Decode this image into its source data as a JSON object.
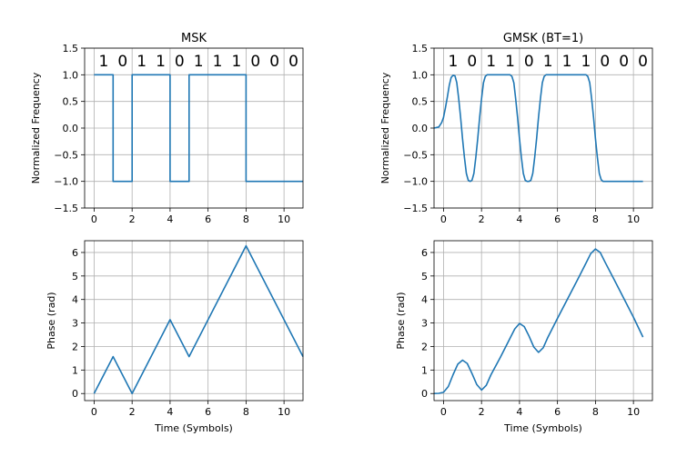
{
  "colors": {
    "series": "#1f77b4",
    "grid": "#b0b0b0"
  },
  "chart_data": [
    {
      "type": "line",
      "title": "MSK",
      "xlabel": "",
      "ylabel": "Normalized Frequency",
      "xlim": [
        -0.5,
        11
      ],
      "ylim": [
        -1.5,
        1.5
      ],
      "xticks": [
        0,
        2,
        4,
        6,
        8,
        10
      ],
      "xtick_labels": [
        "0",
        "2",
        "4",
        "6",
        "8",
        "10"
      ],
      "yticks": [
        -1.5,
        -1.0,
        -0.5,
        0.0,
        0.5,
        1.0,
        1.5
      ],
      "ytick_labels": [
        "−1.5",
        "−1.0",
        "−0.5",
        "0.0",
        "0.5",
        "1.0",
        "1.5"
      ],
      "grid": true,
      "bits": [
        "1",
        "0",
        "1",
        "1",
        "0",
        "1",
        "1",
        "1",
        "0",
        "0",
        "0"
      ],
      "series": [
        {
          "x": [
            0,
            1,
            1,
            2,
            2,
            4,
            4,
            5,
            5,
            8,
            8,
            11
          ],
          "y": [
            1,
            1,
            -1,
            -1,
            1,
            1,
            -1,
            -1,
            1,
            1,
            -1,
            -1
          ]
        }
      ]
    },
    {
      "type": "line",
      "title": "GMSK (BT=1)",
      "xlabel": "",
      "ylabel": "Normalized Frequency",
      "xlim": [
        -0.5,
        11
      ],
      "ylim": [
        -1.5,
        1.5
      ],
      "xticks": [
        0,
        2,
        4,
        6,
        8,
        10
      ],
      "xtick_labels": [
        "0",
        "2",
        "4",
        "6",
        "8",
        "10"
      ],
      "yticks": [
        -1.5,
        -1.0,
        -0.5,
        0.0,
        0.5,
        1.0,
        1.5
      ],
      "ytick_labels": [
        "−1.5",
        "−1.0",
        "−0.5",
        "0.0",
        "0.5",
        "1.0",
        "1.5"
      ],
      "grid": true,
      "bits": [
        "1",
        "0",
        "1",
        "1",
        "0",
        "1",
        "1",
        "1",
        "0",
        "0",
        "0"
      ],
      "series": [
        {
          "x": [
            -0.5,
            -0.25,
            -0.1,
            0.0,
            0.1,
            0.2,
            0.3,
            0.4,
            0.5,
            0.6,
            0.7,
            0.8,
            0.9,
            1.0,
            1.1,
            1.2,
            1.3,
            1.4,
            1.5,
            1.6,
            1.7,
            1.8,
            1.9,
            2.0,
            2.1,
            2.2,
            2.3,
            2.4,
            2.5,
            3.5,
            3.6,
            3.7,
            3.8,
            3.9,
            4.0,
            4.1,
            4.2,
            4.3,
            4.4,
            4.5,
            4.6,
            4.7,
            4.8,
            4.9,
            5.0,
            5.1,
            5.2,
            5.3,
            5.4,
            5.5,
            7.5,
            7.6,
            7.7,
            7.8,
            7.9,
            8.0,
            8.1,
            8.2,
            8.3,
            8.4,
            8.5,
            10.5
          ],
          "y": [
            0.0,
            0.02,
            0.1,
            0.2,
            0.38,
            0.58,
            0.8,
            0.95,
            0.99,
            0.98,
            0.85,
            0.55,
            0.2,
            -0.2,
            -0.55,
            -0.85,
            -0.98,
            -1.0,
            -0.98,
            -0.85,
            -0.55,
            -0.2,
            0.2,
            0.55,
            0.85,
            0.97,
            1.0,
            1.0,
            1.0,
            1.0,
            0.97,
            0.85,
            0.55,
            0.2,
            -0.2,
            -0.55,
            -0.85,
            -0.98,
            -1.0,
            -1.0,
            -0.98,
            -0.85,
            -0.55,
            -0.2,
            0.2,
            0.55,
            0.85,
            0.97,
            1.0,
            1.0,
            1.0,
            0.97,
            0.85,
            0.55,
            0.2,
            -0.2,
            -0.55,
            -0.85,
            -0.97,
            -1.0,
            -1.0,
            -1.0
          ]
        }
      ]
    },
    {
      "type": "line",
      "title": "",
      "xlabel": "Time (Symbols)",
      "ylabel": "Phase (rad)",
      "xlim": [
        -0.5,
        11
      ],
      "ylim": [
        -0.3,
        6.5
      ],
      "xticks": [
        0,
        2,
        4,
        6,
        8,
        10
      ],
      "xtick_labels": [
        "0",
        "2",
        "4",
        "6",
        "8",
        "10"
      ],
      "yticks": [
        0,
        1,
        2,
        3,
        4,
        5,
        6
      ],
      "ytick_labels": [
        "0",
        "1",
        "2",
        "3",
        "4",
        "5",
        "6"
      ],
      "grid": true,
      "series": [
        {
          "x": [
            0,
            1,
            2,
            4,
            5,
            8,
            11
          ],
          "y": [
            0,
            1.571,
            0,
            3.142,
            1.571,
            6.283,
            1.571
          ]
        }
      ]
    },
    {
      "type": "line",
      "title": "",
      "xlabel": "Time (Symbols)",
      "ylabel": "Phase (rad)",
      "xlim": [
        -0.5,
        11
      ],
      "ylim": [
        -0.3,
        6.5
      ],
      "xticks": [
        0,
        2,
        4,
        6,
        8,
        10
      ],
      "xtick_labels": [
        "0",
        "2",
        "4",
        "6",
        "8",
        "10"
      ],
      "yticks": [
        0,
        1,
        2,
        3,
        4,
        5,
        6
      ],
      "ytick_labels": [
        "0",
        "1",
        "2",
        "3",
        "4",
        "5",
        "6"
      ],
      "grid": true,
      "series": [
        {
          "x": [
            -0.5,
            -0.25,
            0.0,
            0.25,
            0.5,
            0.75,
            1.0,
            1.25,
            1.5,
            1.75,
            2.0,
            2.25,
            2.5,
            3.0,
            3.5,
            3.75,
            4.0,
            4.25,
            4.5,
            4.75,
            5.0,
            5.25,
            5.5,
            6.0,
            7.0,
            7.5,
            7.75,
            8.0,
            8.25,
            8.5,
            9.0,
            10.0,
            10.5
          ],
          "y": [
            0.0,
            0.01,
            0.05,
            0.3,
            0.8,
            1.25,
            1.42,
            1.28,
            0.85,
            0.38,
            0.15,
            0.35,
            0.8,
            1.55,
            2.35,
            2.75,
            2.98,
            2.85,
            2.45,
            1.98,
            1.75,
            1.95,
            2.4,
            3.2,
            4.75,
            5.55,
            5.95,
            6.15,
            6.0,
            5.6,
            4.82,
            3.25,
            2.4
          ]
        }
      ]
    }
  ]
}
